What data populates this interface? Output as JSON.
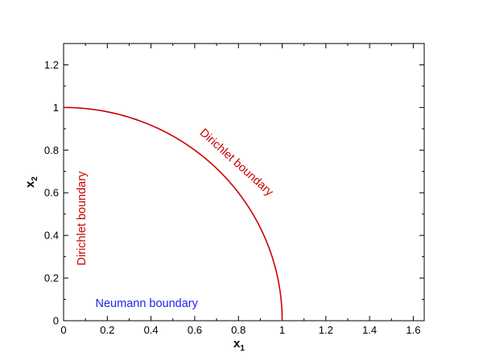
{
  "chart_data": {
    "type": "line",
    "title": "",
    "xlabel": {
      "main": "x",
      "sub": "1"
    },
    "ylabel": {
      "main": "x",
      "sub": "2"
    },
    "xlim": [
      0,
      1.65
    ],
    "ylim": [
      0,
      1.3
    ],
    "xticks": [
      0,
      0.2,
      0.4,
      0.6,
      0.8,
      1,
      1.2,
      1.4,
      1.6
    ],
    "xtick_labels": [
      "0",
      "0.2",
      "0.4",
      "0.6",
      "0.8",
      "1",
      "1.2",
      "1.4",
      "1.6"
    ],
    "yticks": [
      0,
      0.2,
      0.4,
      0.6,
      0.8,
      1,
      1.2
    ],
    "ytick_labels": [
      "0",
      "0.2",
      "0.4",
      "0.6",
      "0.8",
      "1",
      "1.2"
    ],
    "grid": false,
    "series": [
      {
        "color": "#cc0000",
        "x": [
          0,
          0.1,
          0.2,
          0.3,
          0.4,
          0.5,
          0.6,
          0.7,
          0.8,
          0.866,
          0.9,
          0.95,
          0.98,
          1.0
        ],
        "y": [
          1.0,
          0.995,
          0.98,
          0.954,
          0.917,
          0.866,
          0.8,
          0.714,
          0.6,
          0.5,
          0.436,
          0.312,
          0.199,
          0.0
        ]
      }
    ],
    "annotations": [
      {
        "text": "Dirichlet boundary",
        "color": "#cc0000",
        "at": [
          0.78,
          0.73
        ],
        "rotation": 42
      },
      {
        "text": "Dirichlet boundary",
        "color": "#cc0000",
        "at": [
          0.1,
          0.48
        ],
        "rotation": -90
      },
      {
        "text": "Neumann boundary",
        "color": "#2222ee",
        "at": [
          0.38,
          0.065
        ],
        "rotation": 0
      }
    ]
  }
}
